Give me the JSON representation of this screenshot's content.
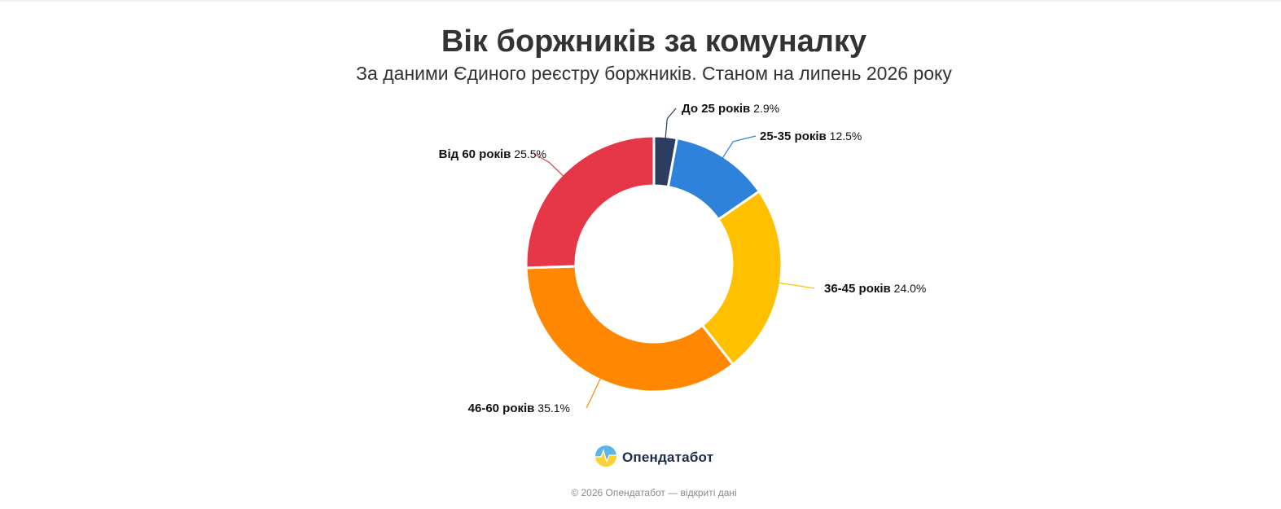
{
  "chart_data": {
    "type": "pie",
    "variant": "donut",
    "title": "Вік боржників за комуналку",
    "subtitle": "За даними Єдиного реєстру боржників. Станом на липень 2026 року",
    "categories": [
      "До 25 років",
      "25-35 років",
      "36-45 років",
      "46-60 років",
      "Від 60 років"
    ],
    "values": [
      2.9,
      12.5,
      24.0,
      35.1,
      25.5
    ],
    "value_labels": [
      "2.9%",
      "12.5%",
      "24.0%",
      "35.1%",
      "25.5%"
    ],
    "colors": [
      "#2c3e5f",
      "#2e82d9",
      "#ffc000",
      "#ff8800",
      "#e53747"
    ],
    "unit": "%",
    "legend": "none"
  },
  "brand": {
    "name": "Опендатабот",
    "icon": "opendatabot-logo-icon"
  },
  "footer": {
    "text": "© 2026 Опендатабот — відкриті дані"
  }
}
